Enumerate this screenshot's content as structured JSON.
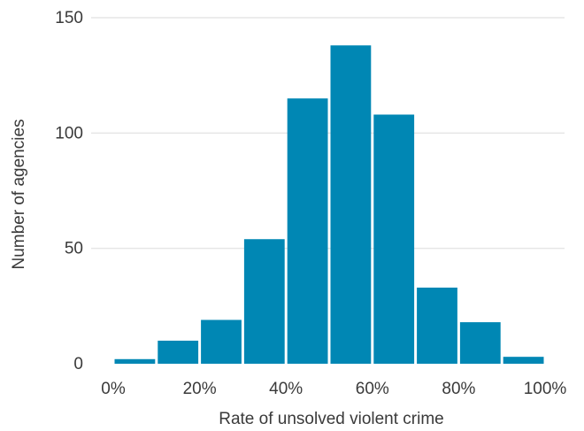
{
  "chart_data": {
    "type": "bar",
    "title": "",
    "xlabel": "Rate of unsolved violent crime",
    "ylabel": "Number of agencies",
    "bins": [
      {
        "from": 0,
        "to": 10,
        "value": 2
      },
      {
        "from": 10,
        "to": 20,
        "value": 10
      },
      {
        "from": 20,
        "to": 30,
        "value": 19
      },
      {
        "from": 30,
        "to": 40,
        "value": 54
      },
      {
        "from": 40,
        "to": 50,
        "value": 115
      },
      {
        "from": 50,
        "to": 60,
        "value": 138
      },
      {
        "from": 60,
        "to": 70,
        "value": 108
      },
      {
        "from": 70,
        "to": 80,
        "value": 33
      },
      {
        "from": 80,
        "to": 90,
        "value": 18
      },
      {
        "from": 90,
        "to": 100,
        "value": 3
      }
    ],
    "xlim": [
      0,
      100
    ],
    "ylim": [
      0,
      150
    ],
    "x_ticks": [
      {
        "value": 0,
        "label": "0%"
      },
      {
        "value": 20,
        "label": "20%"
      },
      {
        "value": 40,
        "label": "40%"
      },
      {
        "value": 60,
        "label": "60%"
      },
      {
        "value": 80,
        "label": "80%"
      },
      {
        "value": 100,
        "label": "100%"
      }
    ],
    "y_ticks": [
      {
        "value": 0,
        "label": "0"
      },
      {
        "value": 50,
        "label": "50"
      },
      {
        "value": 100,
        "label": "100"
      },
      {
        "value": 150,
        "label": "150"
      }
    ],
    "grid": true,
    "bar_color": "#0087b4",
    "grid_color": "#e6e6e6",
    "text_color": "#3a3a3a"
  }
}
